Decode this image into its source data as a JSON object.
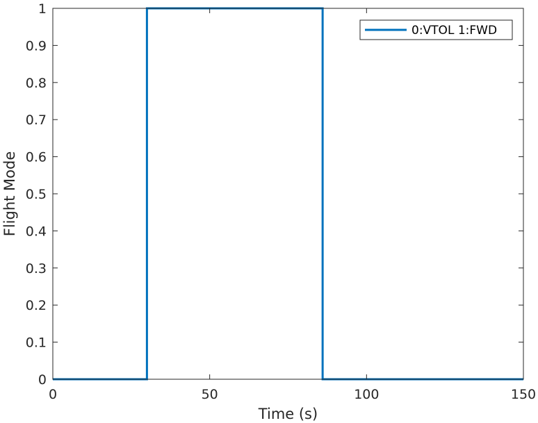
{
  "chart_data": {
    "type": "line",
    "title": "",
    "xlabel": "Time (s)",
    "ylabel": "Flight Mode",
    "xlim": [
      0,
      150
    ],
    "ylim": [
      0,
      1
    ],
    "x_ticks": [
      0,
      50,
      100,
      150
    ],
    "y_ticks": [
      0,
      0.1,
      0.2,
      0.3,
      0.4,
      0.5,
      0.6,
      0.7,
      0.8,
      0.9,
      1
    ],
    "grid": false,
    "legend_position": "top-right",
    "series": [
      {
        "name": "0:VTOL 1:FWD",
        "color": "#0072BD",
        "x": [
          0,
          30,
          30,
          86,
          86,
          150
        ],
        "y": [
          0,
          0,
          1,
          1,
          0,
          0
        ]
      }
    ]
  }
}
